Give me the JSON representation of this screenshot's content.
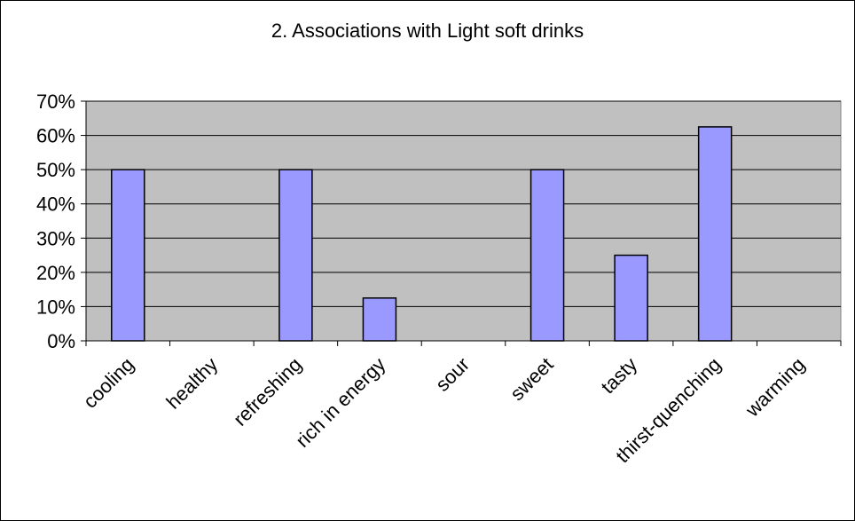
{
  "chart_data": {
    "type": "bar",
    "title": "2. Associations with Light soft drinks",
    "categories": [
      "cooling",
      "healthy",
      "refreshing",
      "rich in energy",
      "sour",
      "sweet",
      "tasty",
      "thirst-quenching",
      "warming"
    ],
    "values": [
      0.5,
      0,
      0.5,
      0.125,
      0,
      0.5,
      0.25,
      0.625,
      0
    ],
    "yticks": [
      "0%",
      "10%",
      "20%",
      "30%",
      "40%",
      "50%",
      "60%",
      "70%"
    ],
    "ylim": [
      0,
      0.7
    ],
    "grid": true,
    "legend": "none",
    "colors": {
      "bar": "#9999ff",
      "plot_bg": "#c0c0c0",
      "grid": "#000000",
      "border": "#000000"
    }
  }
}
